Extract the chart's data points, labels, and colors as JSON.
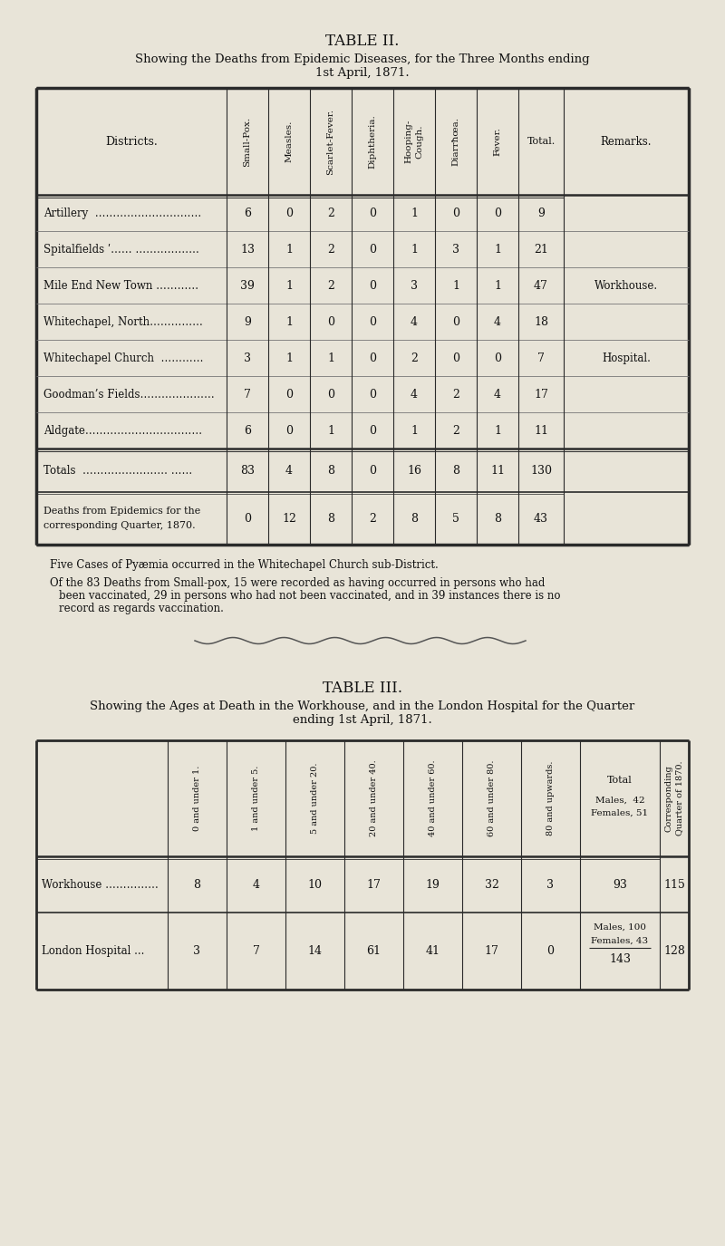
{
  "bg_color": "#e8e4d8",
  "title2": "TABLE II.",
  "subtitle2_line1": "Showing the Deaths from Epidemic Diseases, for the Three Months ending",
  "subtitle2_line2": "1st April, 1871.",
  "table2_row_labels": [
    "Artillery  …………………………",
    "Spitalfields ʹ…… ………………",
    "Mile End New Town …………",
    "Whitechapel, North……………",
    "Whitechapel Church  …………",
    "Goodman’s Fields…………………",
    "Aldgate……………………………"
  ],
  "table2_data": [
    [
      6,
      0,
      2,
      0,
      1,
      0,
      0,
      9,
      ""
    ],
    [
      13,
      1,
      2,
      0,
      1,
      3,
      1,
      21,
      ""
    ],
    [
      39,
      1,
      2,
      0,
      3,
      1,
      1,
      47,
      "Workhouse."
    ],
    [
      9,
      1,
      0,
      0,
      4,
      0,
      4,
      18,
      ""
    ],
    [
      3,
      1,
      1,
      0,
      2,
      0,
      0,
      7,
      "Hospital."
    ],
    [
      7,
      0,
      0,
      0,
      4,
      2,
      4,
      17,
      ""
    ],
    [
      6,
      0,
      1,
      0,
      1,
      2,
      1,
      11,
      ""
    ]
  ],
  "table2_totals_label": "Totals  …………………… ……",
  "table2_totals_data": [
    83,
    4,
    8,
    0,
    16,
    8,
    11,
    130
  ],
  "table2_prev_label1": "Deaths from Epidemics for the",
  "table2_prev_label2": "corresponding Quarter, 1870.",
  "table2_prev_data": [
    0,
    12,
    8,
    2,
    8,
    5,
    8,
    43
  ],
  "rot_headers": [
    "Small-Pox.",
    "Measles.",
    "Scarlet-Fever.",
    "Diphtheria.",
    "Hooping-\nCough.",
    "Diarrħœa.",
    "Fever."
  ],
  "footnote1": "Five Cases of Pyæmia occurred in the Whitechapel Church sub-District.",
  "footnote2a": "Of the 83 Deaths from Small-pox, 15 were recorded as having occurred in persons who had",
  "footnote2b": "been vaccinated, 29 in persons who had not been vaccinated, and in 39 instances there is no",
  "footnote2c": "record as regards vaccination.",
  "title3": "TABLE III.",
  "subtitle3_line1": "Showing the Ages at Death in the Workhouse, and in the London Hospital for the Quarter",
  "subtitle3_line2": "ending 1st April, 1871.",
  "t3_age_headers": [
    "0 and under 1.",
    "1 and under 5.",
    "5 and under 20.",
    "20 and under 40.",
    "40 and under 60.",
    "60 and under 80.",
    "80 and upwards."
  ],
  "wh_data": [
    8,
    4,
    10,
    17,
    19,
    32,
    3
  ],
  "lh_data": [
    3,
    7,
    14,
    61,
    41,
    17,
    0
  ]
}
